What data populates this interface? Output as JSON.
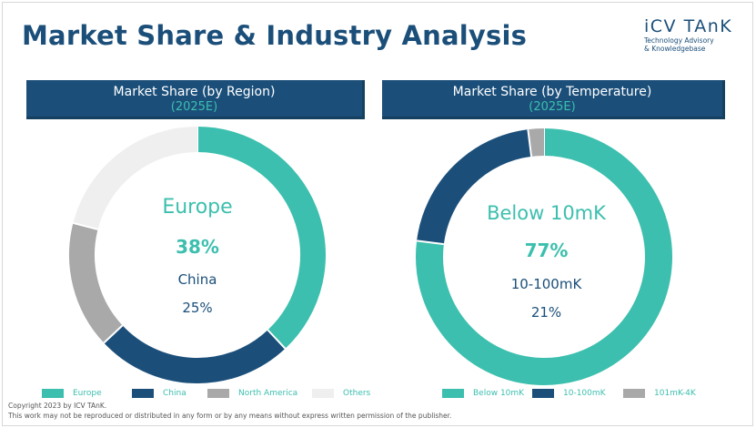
{
  "page": {
    "title": "Market Share & Industry Analysis",
    "logo_name": "iCV TAnK",
    "logo_tagline_1": "Technology Advisory",
    "logo_tagline_2": "& Knowledgebase",
    "copyright": "Copyright  2023 by ICV TAnK.",
    "notice": "This work may not be reproduced or distributed in any form or by any means without express written permission of the publisher."
  },
  "colors": {
    "navy": "#1b4f7a",
    "teal": "#3cbfae",
    "gray": "#a9a9a9",
    "light_gray": "#efefef"
  },
  "chart_data": [
    {
      "type": "pie",
      "title": "Market Share (by Region)",
      "subtitle": "(2025E)",
      "center_primary": {
        "name": "Europe",
        "value": "38%"
      },
      "center_secondary": {
        "name": "China",
        "value": "25%"
      },
      "series": [
        {
          "name": "Europe",
          "value": 38,
          "color": "#3cbfae"
        },
        {
          "name": "China",
          "value": 25,
          "color": "#1b4f7a"
        },
        {
          "name": "North America",
          "value": 16,
          "color": "#a9a9a9"
        },
        {
          "name": "Others",
          "value": 21,
          "color": "#efefef"
        }
      ],
      "legend_position": "bottom"
    },
    {
      "type": "pie",
      "title": "Market Share (by Temperature)",
      "subtitle": "(2025E)",
      "center_primary": {
        "name": "Below 10mK",
        "value": "77%"
      },
      "center_secondary": {
        "name": "10-100mK",
        "value": "21%"
      },
      "series": [
        {
          "name": "Below 10mK",
          "value": 77,
          "color": "#3cbfae"
        },
        {
          "name": "10-100mK",
          "value": 21,
          "color": "#1b4f7a"
        },
        {
          "name": "101mK-4K",
          "value": 2,
          "color": "#a9a9a9"
        }
      ],
      "legend_position": "bottom"
    }
  ]
}
